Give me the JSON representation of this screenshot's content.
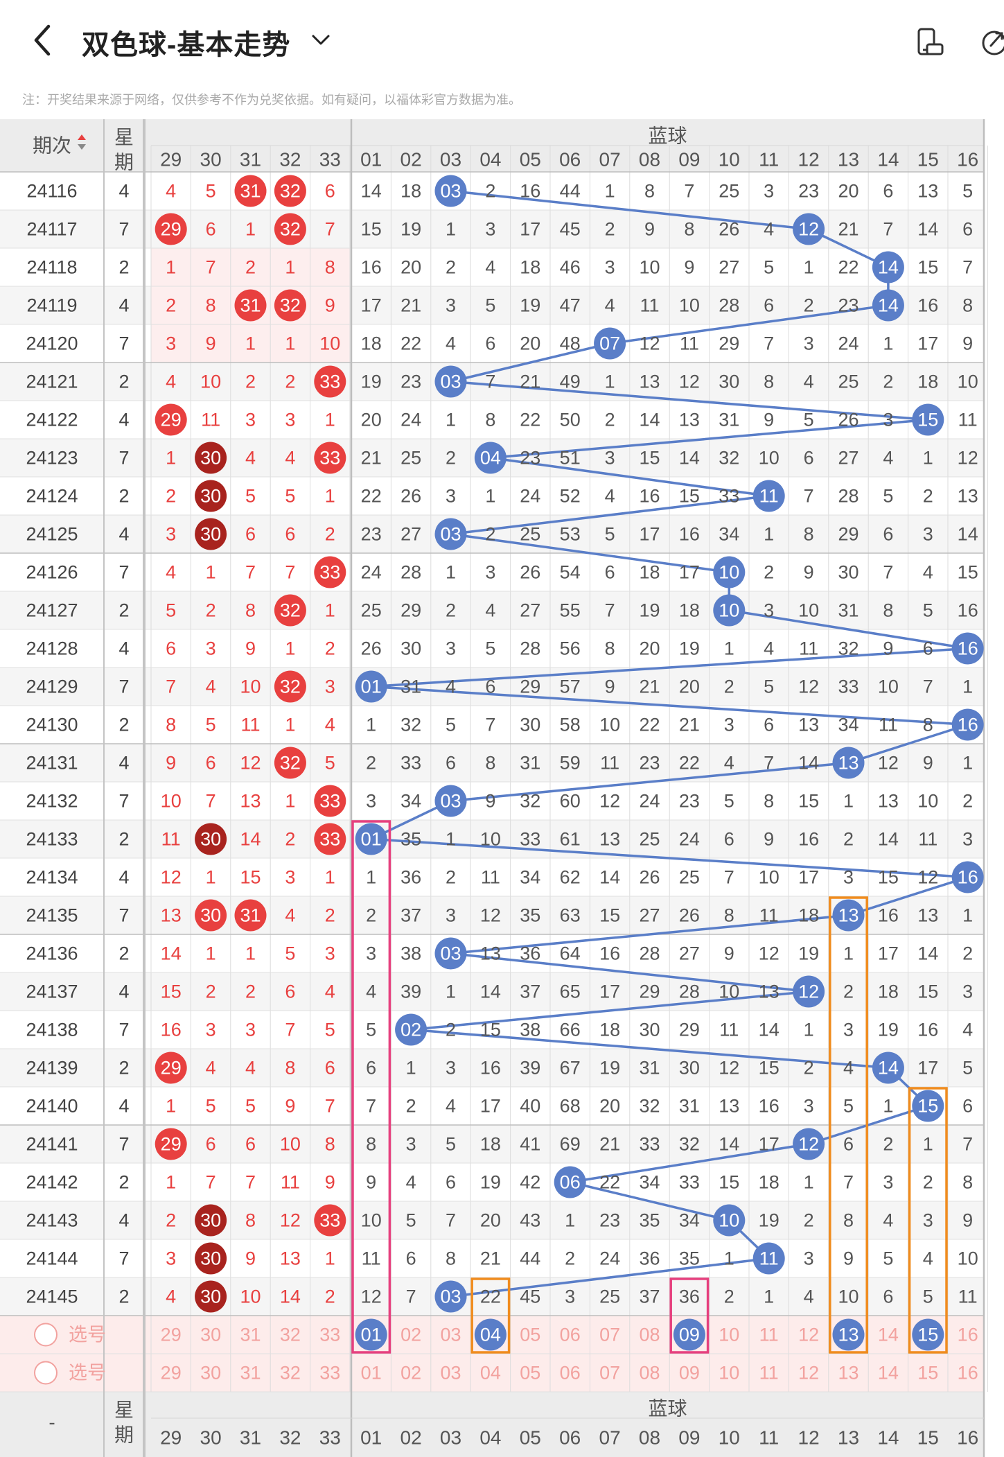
{
  "header": {
    "title": "双色球-基本走势",
    "note": "注：开奖结果来源于网络，仅供参考不作为兑奖依据。如有疑问，以福体彩官方数据为准。"
  },
  "table": {
    "period_header": "期次",
    "week_header": "星期",
    "red_partial_label": "",
    "blue_group_label": "蓝球",
    "red_cols": [
      "29",
      "30",
      "31",
      "32",
      "33"
    ],
    "blue_cols": [
      "01",
      "02",
      "03",
      "04",
      "05",
      "06",
      "07",
      "08",
      "09",
      "10",
      "11",
      "12",
      "13",
      "14",
      "15",
      "16"
    ],
    "select_label": "选号",
    "footer_period": "-",
    "rows": [
      {
        "p": "24116",
        "w": "4",
        "r": [
          "4",
          "5",
          "31",
          "32",
          "6"
        ],
        "b": [
          "14",
          "18",
          "03",
          "2",
          "16",
          "44",
          "1",
          "8",
          "7",
          "25",
          "3",
          "23",
          "20",
          "6",
          "13",
          "5"
        ]
      },
      {
        "p": "24117",
        "w": "7",
        "r": [
          "29",
          "6",
          "1",
          "32",
          "7"
        ],
        "b": [
          "15",
          "19",
          "1",
          "3",
          "17",
          "45",
          "2",
          "9",
          "8",
          "26",
          "4",
          "12",
          "21",
          "7",
          "14",
          "6"
        ]
      },
      {
        "p": "24118",
        "w": "2",
        "r": [
          "1",
          "7",
          "2",
          "1",
          "8"
        ],
        "b": [
          "16",
          "20",
          "2",
          "4",
          "18",
          "46",
          "3",
          "10",
          "9",
          "27",
          "5",
          "1",
          "22",
          "14",
          "15",
          "7"
        ]
      },
      {
        "p": "24119",
        "w": "4",
        "r": [
          "2",
          "8",
          "31",
          "32",
          "9"
        ],
        "b": [
          "17",
          "21",
          "3",
          "5",
          "19",
          "47",
          "4",
          "11",
          "10",
          "28",
          "6",
          "2",
          "23",
          "14",
          "16",
          "8"
        ]
      },
      {
        "p": "24120",
        "w": "7",
        "r": [
          "3",
          "9",
          "1",
          "1",
          "10"
        ],
        "b": [
          "18",
          "22",
          "4",
          "6",
          "20",
          "48",
          "07",
          "12",
          "11",
          "29",
          "7",
          "3",
          "24",
          "1",
          "17",
          "9"
        ]
      },
      {
        "p": "24121",
        "w": "2",
        "r": [
          "4",
          "10",
          "2",
          "2",
          "33"
        ],
        "b": [
          "19",
          "23",
          "03",
          "7",
          "21",
          "49",
          "1",
          "13",
          "12",
          "30",
          "8",
          "4",
          "25",
          "2",
          "18",
          "10"
        ]
      },
      {
        "p": "24122",
        "w": "4",
        "r": [
          "29",
          "11",
          "3",
          "3",
          "1"
        ],
        "b": [
          "20",
          "24",
          "1",
          "8",
          "22",
          "50",
          "2",
          "14",
          "13",
          "31",
          "9",
          "5",
          "26",
          "3",
          "15",
          "11"
        ]
      },
      {
        "p": "24123",
        "w": "7",
        "r": [
          "1",
          "30",
          "4",
          "4",
          "33"
        ],
        "b": [
          "21",
          "25",
          "2",
          "04",
          "23",
          "51",
          "3",
          "15",
          "14",
          "32",
          "10",
          "6",
          "27",
          "4",
          "1",
          "12"
        ]
      },
      {
        "p": "24124",
        "w": "2",
        "r": [
          "2",
          "30",
          "5",
          "5",
          "1"
        ],
        "b": [
          "22",
          "26",
          "3",
          "1",
          "24",
          "52",
          "4",
          "16",
          "15",
          "33",
          "11",
          "7",
          "28",
          "5",
          "2",
          "13"
        ]
      },
      {
        "p": "24125",
        "w": "4",
        "r": [
          "3",
          "30",
          "6",
          "6",
          "2"
        ],
        "b": [
          "23",
          "27",
          "03",
          "2",
          "25",
          "53",
          "5",
          "17",
          "16",
          "34",
          "1",
          "8",
          "29",
          "6",
          "3",
          "14"
        ]
      },
      {
        "p": "24126",
        "w": "7",
        "r": [
          "4",
          "1",
          "7",
          "7",
          "33"
        ],
        "b": [
          "24",
          "28",
          "1",
          "3",
          "26",
          "54",
          "6",
          "18",
          "17",
          "10",
          "2",
          "9",
          "30",
          "7",
          "4",
          "15"
        ]
      },
      {
        "p": "24127",
        "w": "2",
        "r": [
          "5",
          "2",
          "8",
          "32",
          "1"
        ],
        "b": [
          "25",
          "29",
          "2",
          "4",
          "27",
          "55",
          "7",
          "19",
          "18",
          "10",
          "3",
          "10",
          "31",
          "8",
          "5",
          "16"
        ]
      },
      {
        "p": "24128",
        "w": "4",
        "r": [
          "6",
          "3",
          "9",
          "1",
          "2"
        ],
        "b": [
          "26",
          "30",
          "3",
          "5",
          "28",
          "56",
          "8",
          "20",
          "19",
          "1",
          "4",
          "11",
          "32",
          "9",
          "6",
          "16"
        ]
      },
      {
        "p": "24129",
        "w": "7",
        "r": [
          "7",
          "4",
          "10",
          "32",
          "3"
        ],
        "b": [
          "01",
          "31",
          "4",
          "6",
          "29",
          "57",
          "9",
          "21",
          "20",
          "2",
          "5",
          "12",
          "33",
          "10",
          "7",
          "1"
        ]
      },
      {
        "p": "24130",
        "w": "2",
        "r": [
          "8",
          "5",
          "11",
          "1",
          "4"
        ],
        "b": [
          "1",
          "32",
          "5",
          "7",
          "30",
          "58",
          "10",
          "22",
          "21",
          "3",
          "6",
          "13",
          "34",
          "11",
          "8",
          "16"
        ]
      },
      {
        "p": "24131",
        "w": "4",
        "r": [
          "9",
          "6",
          "12",
          "32",
          "5"
        ],
        "b": [
          "2",
          "33",
          "6",
          "8",
          "31",
          "59",
          "11",
          "23",
          "22",
          "4",
          "7",
          "14",
          "13",
          "12",
          "9",
          "1"
        ]
      },
      {
        "p": "24132",
        "w": "7",
        "r": [
          "10",
          "7",
          "13",
          "1",
          "33"
        ],
        "b": [
          "3",
          "34",
          "03",
          "9",
          "32",
          "60",
          "12",
          "24",
          "23",
          "5",
          "8",
          "15",
          "1",
          "13",
          "10",
          "2"
        ]
      },
      {
        "p": "24133",
        "w": "2",
        "r": [
          "11",
          "30",
          "14",
          "2",
          "33"
        ],
        "b": [
          "01",
          "35",
          "1",
          "10",
          "33",
          "61",
          "13",
          "25",
          "24",
          "6",
          "9",
          "16",
          "2",
          "14",
          "11",
          "3"
        ]
      },
      {
        "p": "24134",
        "w": "4",
        "r": [
          "12",
          "1",
          "15",
          "3",
          "1"
        ],
        "b": [
          "1",
          "36",
          "2",
          "11",
          "34",
          "62",
          "14",
          "26",
          "25",
          "7",
          "10",
          "17",
          "3",
          "15",
          "12",
          "16"
        ]
      },
      {
        "p": "24135",
        "w": "7",
        "r": [
          "13",
          "30",
          "31",
          "4",
          "2"
        ],
        "b": [
          "2",
          "37",
          "3",
          "12",
          "35",
          "63",
          "15",
          "27",
          "26",
          "8",
          "11",
          "18",
          "13",
          "16",
          "13",
          "1"
        ]
      },
      {
        "p": "24136",
        "w": "2",
        "r": [
          "14",
          "1",
          "1",
          "5",
          "3"
        ],
        "b": [
          "3",
          "38",
          "03",
          "13",
          "36",
          "64",
          "16",
          "28",
          "27",
          "9",
          "12",
          "19",
          "1",
          "17",
          "14",
          "2"
        ]
      },
      {
        "p": "24137",
        "w": "4",
        "r": [
          "15",
          "2",
          "2",
          "6",
          "4"
        ],
        "b": [
          "4",
          "39",
          "1",
          "14",
          "37",
          "65",
          "17",
          "29",
          "28",
          "10",
          "13",
          "12",
          "2",
          "18",
          "15",
          "3"
        ]
      },
      {
        "p": "24138",
        "w": "7",
        "r": [
          "16",
          "3",
          "3",
          "7",
          "5"
        ],
        "b": [
          "5",
          "02",
          "2",
          "15",
          "38",
          "66",
          "18",
          "30",
          "29",
          "11",
          "14",
          "1",
          "3",
          "19",
          "16",
          "4"
        ]
      },
      {
        "p": "24139",
        "w": "2",
        "r": [
          "29",
          "4",
          "4",
          "8",
          "6"
        ],
        "b": [
          "6",
          "1",
          "3",
          "16",
          "39",
          "67",
          "19",
          "31",
          "30",
          "12",
          "15",
          "2",
          "4",
          "14",
          "17",
          "5"
        ]
      },
      {
        "p": "24140",
        "w": "4",
        "r": [
          "1",
          "5",
          "5",
          "9",
          "7"
        ],
        "b": [
          "7",
          "2",
          "4",
          "17",
          "40",
          "68",
          "20",
          "32",
          "31",
          "13",
          "16",
          "3",
          "5",
          "1",
          "15",
          "6"
        ]
      },
      {
        "p": "24141",
        "w": "7",
        "r": [
          "29",
          "6",
          "6",
          "10",
          "8"
        ],
        "b": [
          "8",
          "3",
          "5",
          "18",
          "41",
          "69",
          "21",
          "33",
          "32",
          "14",
          "17",
          "12",
          "6",
          "2",
          "1",
          "7"
        ]
      },
      {
        "p": "24142",
        "w": "2",
        "r": [
          "1",
          "7",
          "7",
          "11",
          "9"
        ],
        "b": [
          "9",
          "4",
          "6",
          "19",
          "42",
          "06",
          "22",
          "34",
          "33",
          "15",
          "18",
          "1",
          "7",
          "3",
          "2",
          "8"
        ]
      },
      {
        "p": "24143",
        "w": "4",
        "r": [
          "2",
          "30",
          "8",
          "12",
          "33"
        ],
        "b": [
          "10",
          "5",
          "7",
          "20",
          "43",
          "1",
          "23",
          "35",
          "34",
          "10",
          "19",
          "2",
          "8",
          "4",
          "3",
          "9"
        ]
      },
      {
        "p": "24144",
        "w": "7",
        "r": [
          "3",
          "30",
          "9",
          "13",
          "1"
        ],
        "b": [
          "11",
          "6",
          "8",
          "21",
          "44",
          "2",
          "24",
          "36",
          "35",
          "1",
          "11",
          "3",
          "9",
          "5",
          "4",
          "10"
        ]
      },
      {
        "p": "24145",
        "w": "2",
        "r": [
          "4",
          "30",
          "10",
          "14",
          "2"
        ],
        "b": [
          "12",
          "7",
          "03",
          "22",
          "45",
          "3",
          "25",
          "37",
          "36",
          "2",
          "1",
          "4",
          "10",
          "6",
          "5",
          "11"
        ]
      }
    ],
    "red_hits": [
      [
        0,
        2
      ],
      [
        0,
        3
      ],
      [
        1,
        0
      ],
      [
        1,
        3
      ],
      [
        3,
        2
      ],
      [
        3,
        3
      ],
      [
        5,
        4
      ],
      [
        6,
        0
      ],
      [
        7,
        1
      ],
      [
        7,
        4
      ],
      [
        8,
        1
      ],
      [
        9,
        1
      ],
      [
        10,
        4
      ],
      [
        11,
        3
      ],
      [
        13,
        3
      ],
      [
        15,
        3
      ],
      [
        16,
        4
      ],
      [
        17,
        1
      ],
      [
        17,
        4
      ],
      [
        19,
        1
      ],
      [
        19,
        2
      ],
      [
        23,
        0
      ],
      [
        25,
        0
      ],
      [
        27,
        1
      ],
      [
        27,
        4
      ],
      [
        28,
        1
      ],
      [
        29,
        1
      ]
    ],
    "red_dark_hits": [
      [
        7,
        1
      ],
      [
        8,
        1
      ],
      [
        9,
        1
      ],
      [
        17,
        1
      ],
      [
        27,
        1
      ],
      [
        28,
        1
      ],
      [
        29,
        1
      ]
    ],
    "blue_hit_cols": [
      2,
      11,
      13,
      13,
      6,
      2,
      14,
      3,
      10,
      2,
      9,
      9,
      15,
      0,
      15,
      12,
      2,
      0,
      15,
      12,
      2,
      11,
      1,
      13,
      14,
      11,
      5,
      9,
      10,
      2
    ],
    "select_row1_hits": [
      0,
      3,
      8,
      12,
      14
    ],
    "colors": {
      "red": "#e8403f",
      "dark_red": "#a8231e",
      "blue": "#5a7ec8",
      "pink_box": "#e6407e",
      "orange_box": "#f08c1e",
      "select_bg": "#fdeceb",
      "select_text": "#f2a29f"
    }
  }
}
